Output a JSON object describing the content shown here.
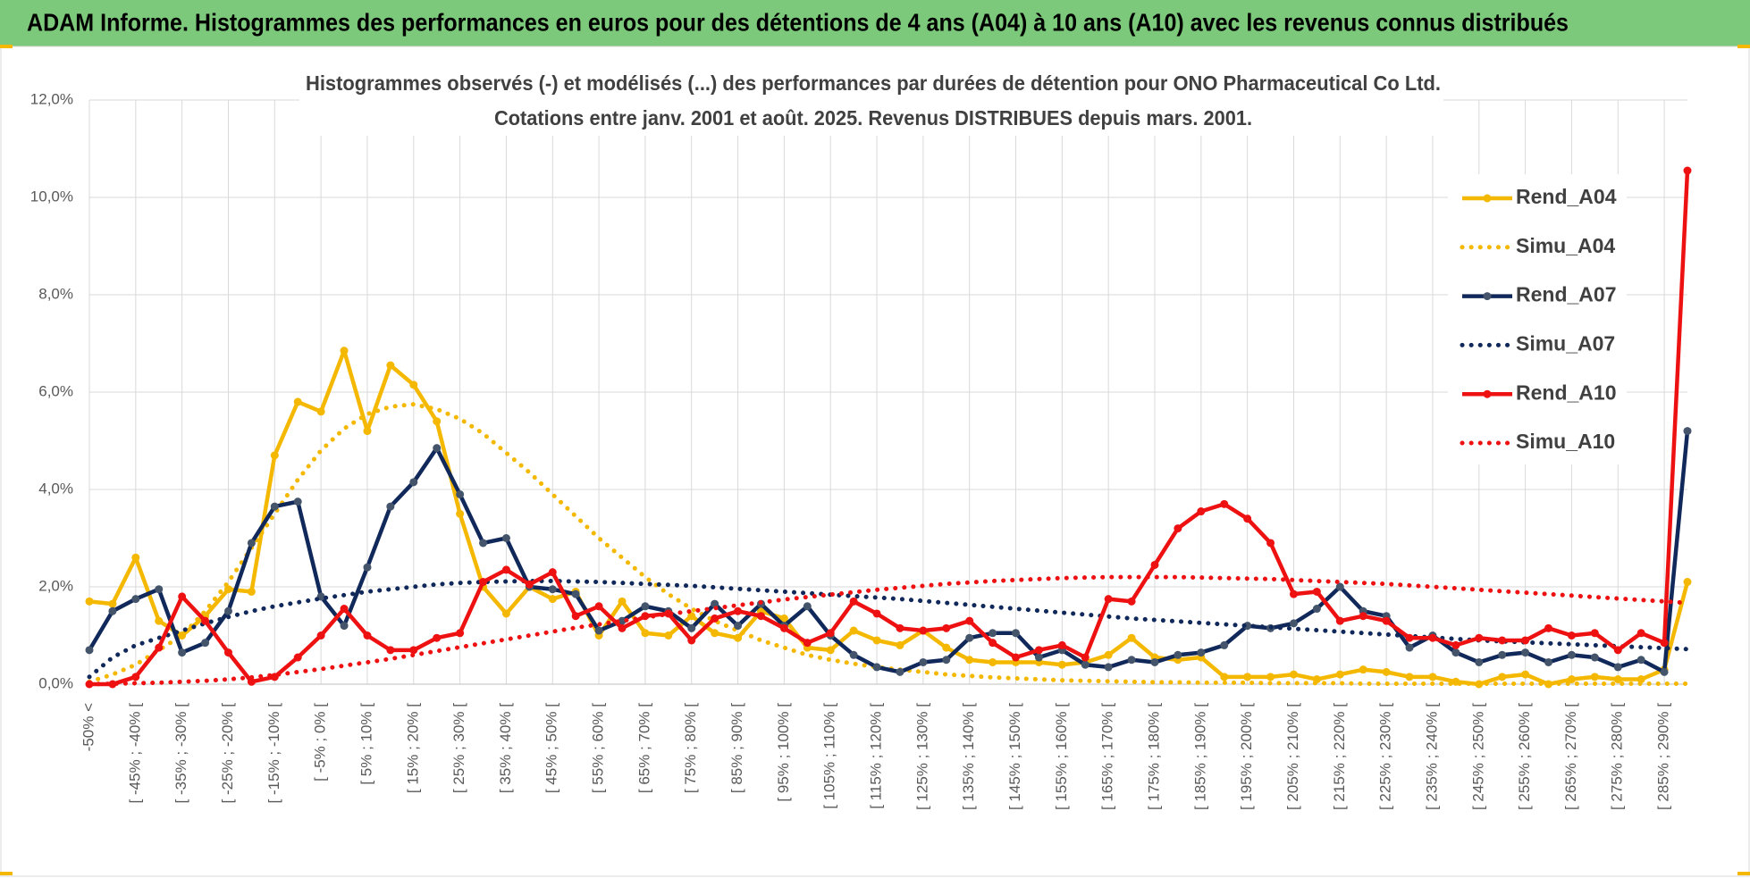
{
  "header": {
    "title": "ADAM Informe. Histogrammes des performances en euros pour des détentions de 4 ans (A04) à 10 ans (A10) avec les revenus connus distribués"
  },
  "chart_data": {
    "type": "line",
    "title": "Histogrammes observés (-) et modélisés (...) des performances par durées de détention pour ONO Pharmaceutical Co Ltd.",
    "subtitle": "Cotations entre janv. 2001 et août. 2025. Revenus DISTRIBUES depuis mars. 2001.",
    "categories": [
      "-50% <",
      null,
      "[ -45% ; -40% [",
      null,
      "[ -35% ; -30% [",
      null,
      "[ -25% ; -20% [",
      null,
      "[ -15% ; -10% [",
      null,
      "[ -5% ; 0% [",
      null,
      "[ 5% ; 10% [",
      null,
      "[ 15% ; 20% [",
      null,
      "[ 25% ; 30% [",
      null,
      "[ 35% ; 40% [",
      null,
      "[ 45% ; 50% [",
      null,
      "[ 55% ; 60% [",
      null,
      "[ 65% ; 70% [",
      null,
      "[ 75% ; 80% [",
      null,
      "[ 85% ; 90% [",
      null,
      "[ 95% ; 100% [",
      null,
      "[ 105% ; 110% [",
      null,
      "[ 115% ; 120% [",
      null,
      "[ 125% ; 130% [",
      null,
      "[ 135% ; 140% [",
      null,
      "[ 145% ; 150% [",
      null,
      "[ 155% ; 160% [",
      null,
      "[ 165% ; 170% [",
      null,
      "[ 175% ; 180% [",
      null,
      "[ 185% ; 190% [",
      null,
      "[ 195% ; 200% [",
      null,
      "[ 205% ; 210% [",
      null,
      "[ 215% ; 220% [",
      null,
      "[ 225% ; 230% [",
      null,
      "[ 235% ; 240% [",
      null,
      "[ 245% ; 250% [",
      null,
      "[ 255% ; 260% [",
      null,
      "[ 265% ; 270% [",
      null,
      "[ 275% ; 280% [",
      null,
      "[ 285% ; 290% [",
      null
    ],
    "ylim": [
      0,
      12
    ],
    "yticks": [
      {
        "value": 0,
        "label": "0,0%"
      },
      {
        "value": 2,
        "label": "2,0%"
      },
      {
        "value": 4,
        "label": "4,0%"
      },
      {
        "value": 6,
        "label": "6,0%"
      },
      {
        "value": 8,
        "label": "8,0%"
      },
      {
        "value": 10,
        "label": "10,0%"
      },
      {
        "value": 12,
        "label": "12,0%"
      }
    ],
    "grid": true,
    "legend": "right",
    "series": [
      {
        "name": "Rend_A04",
        "color": "#f5b800",
        "line_style": "solid",
        "markers": true,
        "values": [
          1.7,
          1.65,
          2.6,
          1.3,
          1.0,
          1.4,
          1.95,
          1.9,
          4.7,
          5.8,
          5.6,
          6.85,
          5.2,
          6.55,
          6.15,
          5.4,
          3.5,
          2.0,
          1.45,
          2.0,
          1.75,
          1.9,
          1.0,
          1.7,
          1.05,
          1.0,
          1.4,
          1.05,
          0.95,
          1.5,
          1.35,
          0.75,
          0.7,
          1.1,
          0.9,
          0.8,
          1.1,
          0.75,
          0.5,
          0.45,
          0.45,
          0.45,
          0.4,
          0.45,
          0.6,
          0.95,
          0.55,
          0.5,
          0.55,
          0.15,
          0.15,
          0.15,
          0.2,
          0.1,
          0.2,
          0.3,
          0.25,
          0.15,
          0.15,
          0.05,
          0.0,
          0.15,
          0.2,
          0.0,
          0.1,
          0.15,
          0.1,
          0.1,
          0.3,
          2.1
        ]
      },
      {
        "name": "Simu_A04",
        "color": "#f5b800",
        "line_style": "dotted",
        "markers": false,
        "values": [
          0.05,
          0.2,
          0.4,
          0.7,
          1.0,
          1.5,
          2.1,
          2.8,
          3.5,
          4.2,
          4.8,
          5.25,
          5.55,
          5.7,
          5.75,
          5.65,
          5.45,
          5.15,
          4.75,
          4.35,
          3.9,
          3.45,
          3.0,
          2.6,
          2.2,
          1.85,
          1.55,
          1.3,
          1.1,
          0.9,
          0.75,
          0.6,
          0.5,
          0.42,
          0.35,
          0.3,
          0.25,
          0.2,
          0.17,
          0.14,
          0.12,
          0.1,
          0.08,
          0.07,
          0.06,
          0.05,
          0.04,
          0.04,
          0.03,
          0.03,
          0.03,
          0.02,
          0.02,
          0.02,
          0.02,
          0.01,
          0.01,
          0.01,
          0.01,
          0.01,
          0.01,
          0.01,
          0.01,
          0.01,
          0.01,
          0.01,
          0.01,
          0.01,
          0.01,
          0.01
        ]
      },
      {
        "name": "Rend_A07",
        "color": "#10285a",
        "line_style": "solid",
        "markers": true,
        "values": [
          0.7,
          1.5,
          1.75,
          1.95,
          0.65,
          0.85,
          1.5,
          2.9,
          3.65,
          3.75,
          1.8,
          1.2,
          2.4,
          3.65,
          4.15,
          4.85,
          3.9,
          2.9,
          3.0,
          2.0,
          1.95,
          1.85,
          1.1,
          1.3,
          1.6,
          1.5,
          1.15,
          1.65,
          1.2,
          1.65,
          1.2,
          1.6,
          1.0,
          0.6,
          0.35,
          0.25,
          0.45,
          0.5,
          0.95,
          1.05,
          1.05,
          0.55,
          0.7,
          0.4,
          0.35,
          0.5,
          0.45,
          0.6,
          0.65,
          0.8,
          1.2,
          1.15,
          1.25,
          1.55,
          2.0,
          1.5,
          1.4,
          0.75,
          1.0,
          0.65,
          0.45,
          0.6,
          0.65,
          0.45,
          0.6,
          0.55,
          0.35,
          0.5,
          0.25,
          5.2
        ]
      },
      {
        "name": "Simu_A07",
        "color": "#10285a",
        "line_style": "dotted",
        "markers": false,
        "values": [
          0.15,
          0.55,
          0.8,
          0.95,
          1.1,
          1.25,
          1.38,
          1.5,
          1.6,
          1.68,
          1.76,
          1.83,
          1.9,
          1.95,
          2.0,
          2.05,
          2.08,
          2.1,
          2.11,
          2.12,
          2.12,
          2.11,
          2.1,
          2.08,
          2.06,
          2.04,
          2.02,
          1.99,
          1.96,
          1.93,
          1.9,
          1.87,
          1.84,
          1.81,
          1.78,
          1.75,
          1.71,
          1.67,
          1.63,
          1.59,
          1.55,
          1.51,
          1.47,
          1.43,
          1.39,
          1.35,
          1.32,
          1.29,
          1.26,
          1.23,
          1.2,
          1.17,
          1.14,
          1.11,
          1.08,
          1.05,
          1.02,
          0.99,
          0.96,
          0.93,
          0.9,
          0.88,
          0.86,
          0.84,
          0.82,
          0.8,
          0.78,
          0.76,
          0.74,
          0.72
        ]
      },
      {
        "name": "Rend_A10",
        "color": "#ee1111",
        "line_style": "solid",
        "markers": true,
        "values": [
          0.0,
          0.0,
          0.15,
          0.75,
          1.8,
          1.3,
          0.65,
          0.05,
          0.15,
          0.55,
          1.0,
          1.55,
          1.0,
          0.7,
          0.7,
          0.95,
          1.05,
          2.1,
          2.35,
          2.05,
          2.3,
          1.4,
          1.6,
          1.15,
          1.4,
          1.45,
          0.9,
          1.35,
          1.5,
          1.4,
          1.15,
          0.85,
          1.05,
          1.7,
          1.45,
          1.15,
          1.1,
          1.15,
          1.3,
          0.85,
          0.55,
          0.7,
          0.8,
          0.55,
          1.75,
          1.7,
          2.45,
          3.2,
          3.55,
          3.7,
          3.4,
          2.9,
          1.85,
          1.9,
          1.3,
          1.4,
          1.3,
          0.95,
          0.95,
          0.8,
          0.95,
          0.9,
          0.9,
          1.15,
          1.0,
          1.05,
          0.7,
          1.05,
          0.85,
          10.55
        ]
      },
      {
        "name": "Simu_A10",
        "color": "#ee1111",
        "line_style": "dotted",
        "markers": false,
        "values": [
          0.0,
          0.01,
          0.02,
          0.03,
          0.05,
          0.07,
          0.1,
          0.14,
          0.19,
          0.25,
          0.31,
          0.38,
          0.45,
          0.52,
          0.6,
          0.68,
          0.76,
          0.84,
          0.92,
          1.0,
          1.08,
          1.16,
          1.23,
          1.3,
          1.37,
          1.44,
          1.5,
          1.56,
          1.62,
          1.68,
          1.74,
          1.79,
          1.84,
          1.89,
          1.94,
          1.98,
          2.02,
          2.06,
          2.09,
          2.12,
          2.14,
          2.16,
          2.18,
          2.19,
          2.2,
          2.2,
          2.2,
          2.2,
          2.19,
          2.18,
          2.17,
          2.16,
          2.14,
          2.12,
          2.1,
          2.08,
          2.06,
          2.03,
          2.0,
          1.97,
          1.94,
          1.91,
          1.88,
          1.85,
          1.82,
          1.79,
          1.76,
          1.73,
          1.7,
          1.67
        ]
      }
    ]
  }
}
